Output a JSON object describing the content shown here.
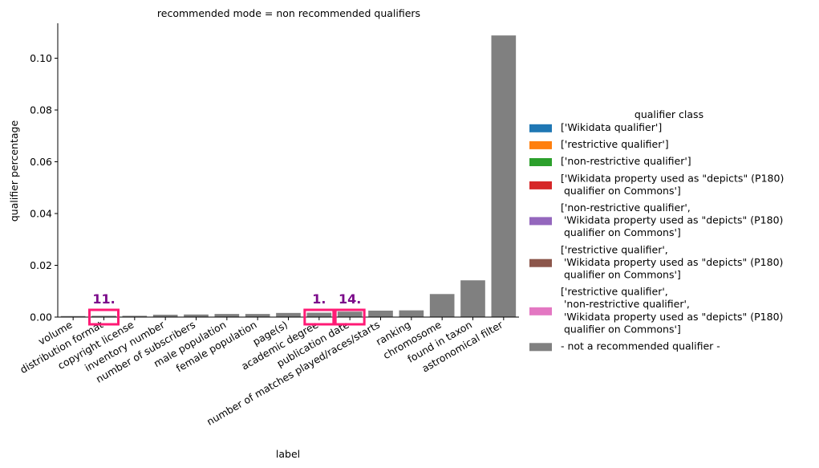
{
  "chart_data": {
    "type": "bar",
    "title": "recommended mode = non recommended qualifiers",
    "xlabel": "label",
    "ylabel": "qualifier percentage",
    "ylim": [
      0,
      0.1135
    ],
    "yticks": [
      "0.00",
      "0.02",
      "0.04",
      "0.06",
      "0.08",
      "0.10"
    ],
    "grid": false,
    "categories": [
      "volume",
      "distribution format",
      "copyright license",
      "inventory number",
      "number of subscribers",
      "male population",
      "female population",
      "page(s)",
      "academic degree",
      "publication date",
      "number of matches played/races/starts",
      "ranking",
      "chromosome",
      "found in taxon",
      "astronomical filter"
    ],
    "values": [
      0.0004,
      0.0005,
      0.0005,
      0.0009,
      0.001,
      0.0012,
      0.0012,
      0.0016,
      0.0017,
      0.0021,
      0.0025,
      0.0026,
      0.0089,
      0.0142,
      0.1088
    ],
    "bar_color": "#808080",
    "annotations": [
      {
        "text": "11.",
        "category_index": 1
      },
      {
        "text": "1.",
        "category_index": 8
      },
      {
        "text": "14.",
        "category_index": 9
      }
    ],
    "annotation_color": "#7b0a8a",
    "highlight_color": "#ff1a75",
    "legend": {
      "title": "qualifier class",
      "position": "right",
      "entries": [
        {
          "label": [
            "['Wikidata qualifier']"
          ],
          "color": "#1f77b4"
        },
        {
          "label": [
            "['restrictive qualifier']"
          ],
          "color": "#ff7f0e"
        },
        {
          "label": [
            "['non-restrictive qualifier']"
          ],
          "color": "#2ca02c"
        },
        {
          "label": [
            "['Wikidata property used as \"depicts\" (P180)",
            " qualifier on Commons']"
          ],
          "color": "#d62728"
        },
        {
          "label": [
            "['non-restrictive qualifier',",
            " 'Wikidata property used as \"depicts\" (P180)",
            " qualifier on Commons']"
          ],
          "color": "#9467bd"
        },
        {
          "label": [
            "['restrictive qualifier',",
            " 'Wikidata property used as \"depicts\" (P180)",
            " qualifier on Commons']"
          ],
          "color": "#8c564b"
        },
        {
          "label": [
            "['restrictive qualifier',",
            " 'non-restrictive qualifier',",
            " 'Wikidata property used as \"depicts\" (P180)",
            " qualifier on Commons']"
          ],
          "color": "#e377c2"
        },
        {
          "label": [
            "- not a recommended qualifier -"
          ],
          "color": "#808080"
        }
      ]
    }
  }
}
